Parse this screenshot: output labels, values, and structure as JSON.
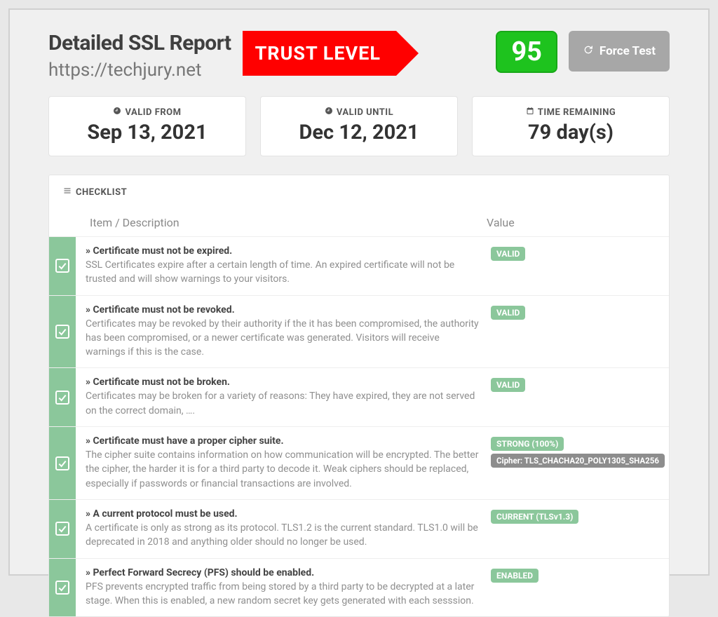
{
  "colors": {
    "page_bg": "#e8e8e8",
    "frame_bg": "#f0f0f0",
    "accent_red": "#ff0000",
    "accent_green": "#1ec31e",
    "badge_green": "#8bc79b",
    "badge_gray": "#8d8d8d",
    "btn_gray": "#a7a7a7",
    "text_dark": "#3f3f3f",
    "text_muted": "#777"
  },
  "header": {
    "title": "Detailed SSL Report",
    "url": "https://techjury.net",
    "trust_label": "TRUST LEVEL",
    "score": "95",
    "force_test_label": "Force Test"
  },
  "cards": {
    "valid_from": {
      "label": "VALID FROM",
      "value": "Sep 13, 2021"
    },
    "valid_until": {
      "label": "VALID UNTIL",
      "value": "Dec 12, 2021"
    },
    "time_remaining": {
      "label": "TIME REMAINING",
      "value": "79 day(s)"
    }
  },
  "checklist": {
    "panel_title": "CHECKLIST",
    "col_item": "Item / Description",
    "col_value": "Value",
    "rows": [
      {
        "title": "» Certificate must not be expired.",
        "desc": "SSL Certificates expire after a certain length of time. An expired certificate will not be trusted and will show warnings to your visitors.",
        "badges": [
          {
            "text": "VALID",
            "cls": "badge-green"
          }
        ]
      },
      {
        "title": "» Certificate must not be revoked.",
        "desc": "Certificates may be revoked by their authority if the it has been compromised, the authority has been compromised, or a newer certificate was generated. Visitors will receive warnings if this is the case.",
        "badges": [
          {
            "text": "VALID",
            "cls": "badge-green"
          }
        ]
      },
      {
        "title": "» Certificate must not be broken.",
        "desc": "Certificates may be broken for a variety of reasons: They have expired, they are not served on the correct domain, ….",
        "badges": [
          {
            "text": "VALID",
            "cls": "badge-green"
          }
        ]
      },
      {
        "title": "» Certificate must have a proper cipher suite.",
        "desc": "The cipher suite contains information on how communication will be encrypted. The better the cipher, the harder it is for a third party to decode it. Weak ciphers should be replaced, especially if passwords or financial transactions are involved.",
        "badges": [
          {
            "text": "STRONG (100%)",
            "cls": "badge-green"
          },
          {
            "text": "Cipher: TLS_CHACHA20_POLY1305_SHA256",
            "cls": "badge-gray"
          }
        ]
      },
      {
        "title": "» A current protocol must be used.",
        "desc": "A certificate is only as strong as its protocol. TLS1.2 is the current standard. TLS1.0 will be deprecated in 2018 and anything older should no longer be used.",
        "badges": [
          {
            "text": "CURRENT (TLSv1.3)",
            "cls": "badge-green"
          }
        ]
      },
      {
        "title": "» Perfect Forward Secrecy (PFS) should be enabled.",
        "desc": "PFS prevents encrypted traffic from being stored by a third party to be decrypted at a later stage. When this is enabled, a new random secret key gets generated with each sesssion.",
        "badges": [
          {
            "text": "ENABLED",
            "cls": "badge-green"
          }
        ]
      }
    ]
  }
}
